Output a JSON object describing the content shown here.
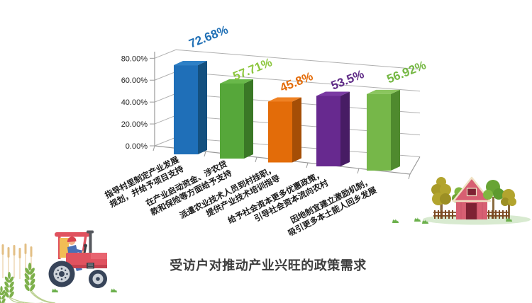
{
  "page": {
    "background": "#ffffff"
  },
  "title": "受访户对推动产业兴旺的政策需求",
  "chart_data": {
    "type": "bar",
    "projection": "3d",
    "title": "受访户对推动产业兴旺的政策需求",
    "categories": [
      "指导村里制定产业发展\n规划，并给予项目支持",
      "在产业启动资金、涉农贷\n款和保险等方面给予支持",
      "派遣农业技术人员到村挂职，\n提供产业技术培训指导",
      "给予社会资本更多优惠政策，\n引导社会资本流向农村",
      "因地制宜建立激励机制，\n吸引更多本土能人回乡发展"
    ],
    "values": [
      72.68,
      57.71,
      45.8,
      53.5,
      56.92
    ],
    "value_labels": [
      "72.68%",
      "57.71%",
      "45.8%",
      "53.5%",
      "56.92%"
    ],
    "y_ticks": [
      0,
      20,
      40,
      60,
      80
    ],
    "y_tick_labels": [
      "0.00%",
      "20.00%",
      "40.00%",
      "60.00%",
      "80.00%"
    ],
    "ylim": [
      0,
      80
    ],
    "grid": true,
    "legend": false,
    "bar_colors": [
      "#1f6fb8",
      "#56a73a",
      "#e36c09",
      "#67298f",
      "#76b749"
    ],
    "bar_side_colors": [
      "#14507f",
      "#3a7826",
      "#a54e06",
      "#471c64",
      "#4f8a2e"
    ],
    "bar_top_colors": [
      "#2e80c6",
      "#69b84a",
      "#ef8123",
      "#7a3aa3",
      "#8ac55e"
    ],
    "label_colors": [
      "#1f6fb5",
      "#8cc63e",
      "#e36c0a",
      "#5f2b87",
      "#74b742"
    ],
    "axis_color": "#9a9a9a",
    "grid_color": "#b0b0b0"
  },
  "illustrations": [
    "barn-with-trees",
    "farmer-on-tractor",
    "wheat-stalks",
    "grass-tufts"
  ]
}
